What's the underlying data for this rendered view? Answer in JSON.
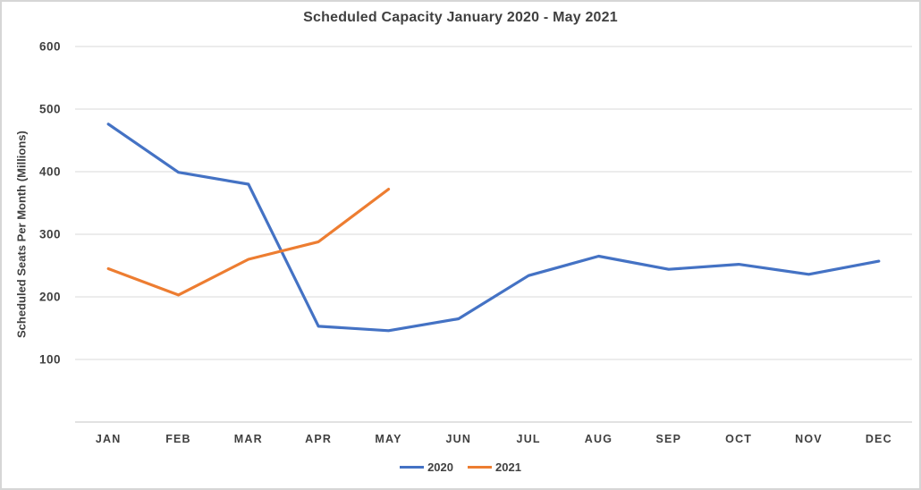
{
  "chart_data": {
    "type": "line",
    "title": "Scheduled Capacity January 2020 - May 2021",
    "xlabel": "",
    "ylabel": "Scheduled Seats Per Month (Millions)",
    "categories": [
      "JAN",
      "FEB",
      "MAR",
      "APR",
      "MAY",
      "JUN",
      "JUL",
      "AUG",
      "SEP",
      "OCT",
      "NOV",
      "DEC"
    ],
    "series": [
      {
        "name": "2020",
        "color": "#4472C4",
        "values": [
          476,
          399,
          380,
          153,
          146,
          165,
          234,
          265,
          244,
          252,
          236,
          257
        ]
      },
      {
        "name": "2021",
        "color": "#ED7D31",
        "values": [
          245,
          203,
          260,
          288,
          372
        ]
      }
    ],
    "y_ticks": [
      100,
      200,
      300,
      400,
      500,
      600
    ],
    "ylim": [
      0,
      600
    ],
    "grid": true,
    "legend_position": "bottom",
    "colors": {
      "text": "#404040",
      "gridline": "#D9D9D9",
      "axis_line": "#C6C6C6",
      "background": "#FFFFFF"
    }
  }
}
